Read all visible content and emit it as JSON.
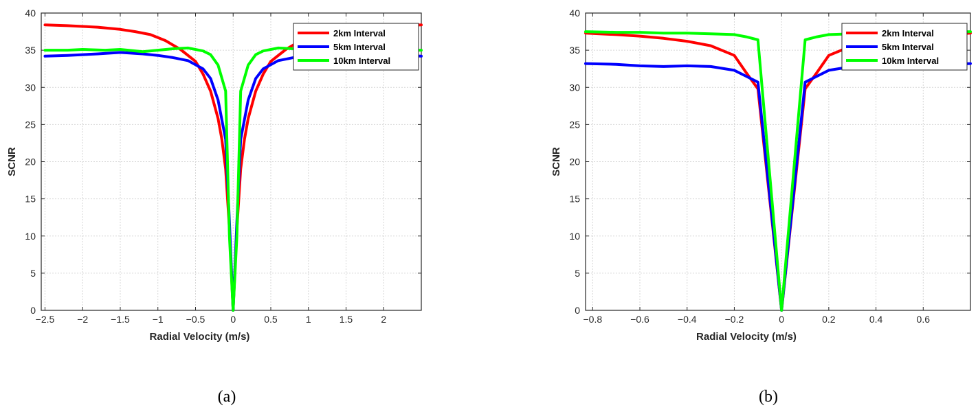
{
  "chart_data": [
    {
      "type": "line",
      "caption": "(a)",
      "xlabel": "Radial Velocity (m/s)",
      "ylabel": "SCNR",
      "xlim": [
        -2.55,
        2.5
      ],
      "ylim": [
        0,
        40
      ],
      "xticks": [
        -2.5,
        -2,
        -1.5,
        -1,
        -0.5,
        0,
        0.5,
        1,
        1.5,
        2
      ],
      "xtick_labels": [
        "−2.5",
        "−2",
        "−1.5",
        "−1",
        "−0.5",
        "0",
        "0.5",
        "1",
        "1.5",
        "2"
      ],
      "yticks": [
        0,
        5,
        10,
        15,
        20,
        25,
        30,
        35,
        40
      ],
      "ytick_labels": [
        "0",
        "5",
        "10",
        "15",
        "20",
        "25",
        "30",
        "35",
        "40"
      ],
      "grid": true,
      "legend_position": "top-right",
      "series": [
        {
          "name": "2km Interval",
          "color": "#ff0000",
          "x": [
            -2.5,
            -2.2,
            -2.0,
            -1.8,
            -1.5,
            -1.3,
            -1.1,
            -0.9,
            -0.7,
            -0.5,
            -0.4,
            -0.3,
            -0.2,
            -0.15,
            -0.1,
            -0.05,
            0,
            0.05,
            0.1,
            0.15,
            0.2,
            0.3,
            0.4,
            0.5,
            0.7,
            0.9,
            1.2,
            1.5,
            1.8,
            2.0,
            2.2,
            2.5
          ],
          "y": [
            38.4,
            38.3,
            38.2,
            38.1,
            37.8,
            37.5,
            37.1,
            36.3,
            35.1,
            33.5,
            31.8,
            29.5,
            25.8,
            23.0,
            19.0,
            11.0,
            0,
            11.0,
            19.0,
            23.0,
            25.8,
            29.5,
            31.8,
            33.5,
            35.1,
            36.3,
            37.1,
            37.5,
            37.9,
            38.1,
            38.3,
            38.4
          ]
        },
        {
          "name": "5km Interval",
          "color": "#0000ff",
          "x": [
            -2.5,
            -2.2,
            -2.0,
            -1.8,
            -1.5,
            -1.2,
            -1.0,
            -0.8,
            -0.6,
            -0.4,
            -0.3,
            -0.2,
            -0.1,
            -0.05,
            0,
            0.05,
            0.1,
            0.2,
            0.3,
            0.4,
            0.6,
            0.8,
            1.0,
            1.2,
            1.5,
            1.8,
            2.0,
            2.2,
            2.5
          ],
          "y": [
            34.2,
            34.3,
            34.4,
            34.5,
            34.7,
            34.5,
            34.3,
            34.0,
            33.6,
            32.5,
            31.2,
            28.3,
            23.0,
            12.0,
            0,
            12.0,
            23.0,
            28.3,
            31.2,
            32.5,
            33.6,
            34.0,
            34.3,
            34.5,
            34.7,
            34.5,
            34.4,
            34.3,
            34.2
          ]
        },
        {
          "name": "10km Interval",
          "color": "#00ff00",
          "x": [
            -2.5,
            -2.2,
            -2.0,
            -1.7,
            -1.5,
            -1.2,
            -1.0,
            -0.8,
            -0.6,
            -0.4,
            -0.3,
            -0.2,
            -0.1,
            -0.05,
            0,
            0.05,
            0.1,
            0.2,
            0.3,
            0.4,
            0.6,
            0.8,
            1.0,
            1.2,
            1.5,
            1.8,
            2.0,
            2.2,
            2.5
          ],
          "y": [
            35.0,
            35.0,
            35.1,
            35.0,
            35.1,
            34.8,
            35.0,
            35.2,
            35.3,
            34.9,
            34.4,
            33.0,
            29.5,
            10.0,
            0,
            10.0,
            29.5,
            33.0,
            34.4,
            34.9,
            35.3,
            35.2,
            35.0,
            34.8,
            35.1,
            35.0,
            35.1,
            35.0,
            35.0
          ]
        }
      ]
    },
    {
      "type": "line",
      "caption": "(b)",
      "xlabel": "Radial Velocity (m/s)",
      "ylabel": "SCNR",
      "xlim": [
        -0.83,
        0.8
      ],
      "ylim": [
        0,
        40
      ],
      "xticks": [
        -0.8,
        -0.6,
        -0.4,
        -0.2,
        0,
        0.2,
        0.4,
        0.6
      ],
      "xtick_labels": [
        "−0.8",
        "−0.6",
        "−0.4",
        "−0.2",
        "0",
        "0.2",
        "0.4",
        "0.6"
      ],
      "yticks": [
        0,
        5,
        10,
        15,
        20,
        25,
        30,
        35,
        40
      ],
      "ytick_labels": [
        "0",
        "5",
        "10",
        "15",
        "20",
        "25",
        "30",
        "35",
        "40"
      ],
      "grid": true,
      "legend_position": "top-right",
      "series": [
        {
          "name": "2km Interval",
          "color": "#ff0000",
          "x": [
            -0.83,
            -0.7,
            -0.6,
            -0.5,
            -0.4,
            -0.3,
            -0.2,
            -0.15,
            -0.1,
            0,
            0.1,
            0.15,
            0.2,
            0.3,
            0.4,
            0.5,
            0.6,
            0.7,
            0.8
          ],
          "y": [
            37.3,
            37.1,
            36.9,
            36.6,
            36.2,
            35.6,
            34.3,
            32.0,
            29.8,
            0,
            29.8,
            32.0,
            34.3,
            35.6,
            36.2,
            36.6,
            36.9,
            37.1,
            37.3
          ]
        },
        {
          "name": "5km Interval",
          "color": "#0000ff",
          "x": [
            -0.83,
            -0.7,
            -0.6,
            -0.5,
            -0.4,
            -0.3,
            -0.2,
            -0.15,
            -0.1,
            0,
            0.1,
            0.15,
            0.2,
            0.3,
            0.4,
            0.5,
            0.6,
            0.7,
            0.8
          ],
          "y": [
            33.2,
            33.1,
            32.9,
            32.8,
            32.9,
            32.8,
            32.3,
            31.5,
            30.7,
            0,
            30.7,
            31.5,
            32.3,
            32.8,
            32.9,
            32.8,
            32.9,
            33.1,
            33.2
          ]
        },
        {
          "name": "10km Interval",
          "color": "#00ff00",
          "x": [
            -0.83,
            -0.7,
            -0.6,
            -0.5,
            -0.4,
            -0.3,
            -0.2,
            -0.15,
            -0.1,
            0,
            0.1,
            0.15,
            0.2,
            0.3,
            0.4,
            0.5,
            0.6,
            0.7,
            0.8
          ],
          "y": [
            37.5,
            37.4,
            37.4,
            37.3,
            37.3,
            37.2,
            37.1,
            36.8,
            36.4,
            0,
            36.4,
            36.8,
            37.1,
            37.2,
            37.3,
            37.3,
            37.4,
            37.4,
            37.5
          ]
        }
      ]
    }
  ]
}
